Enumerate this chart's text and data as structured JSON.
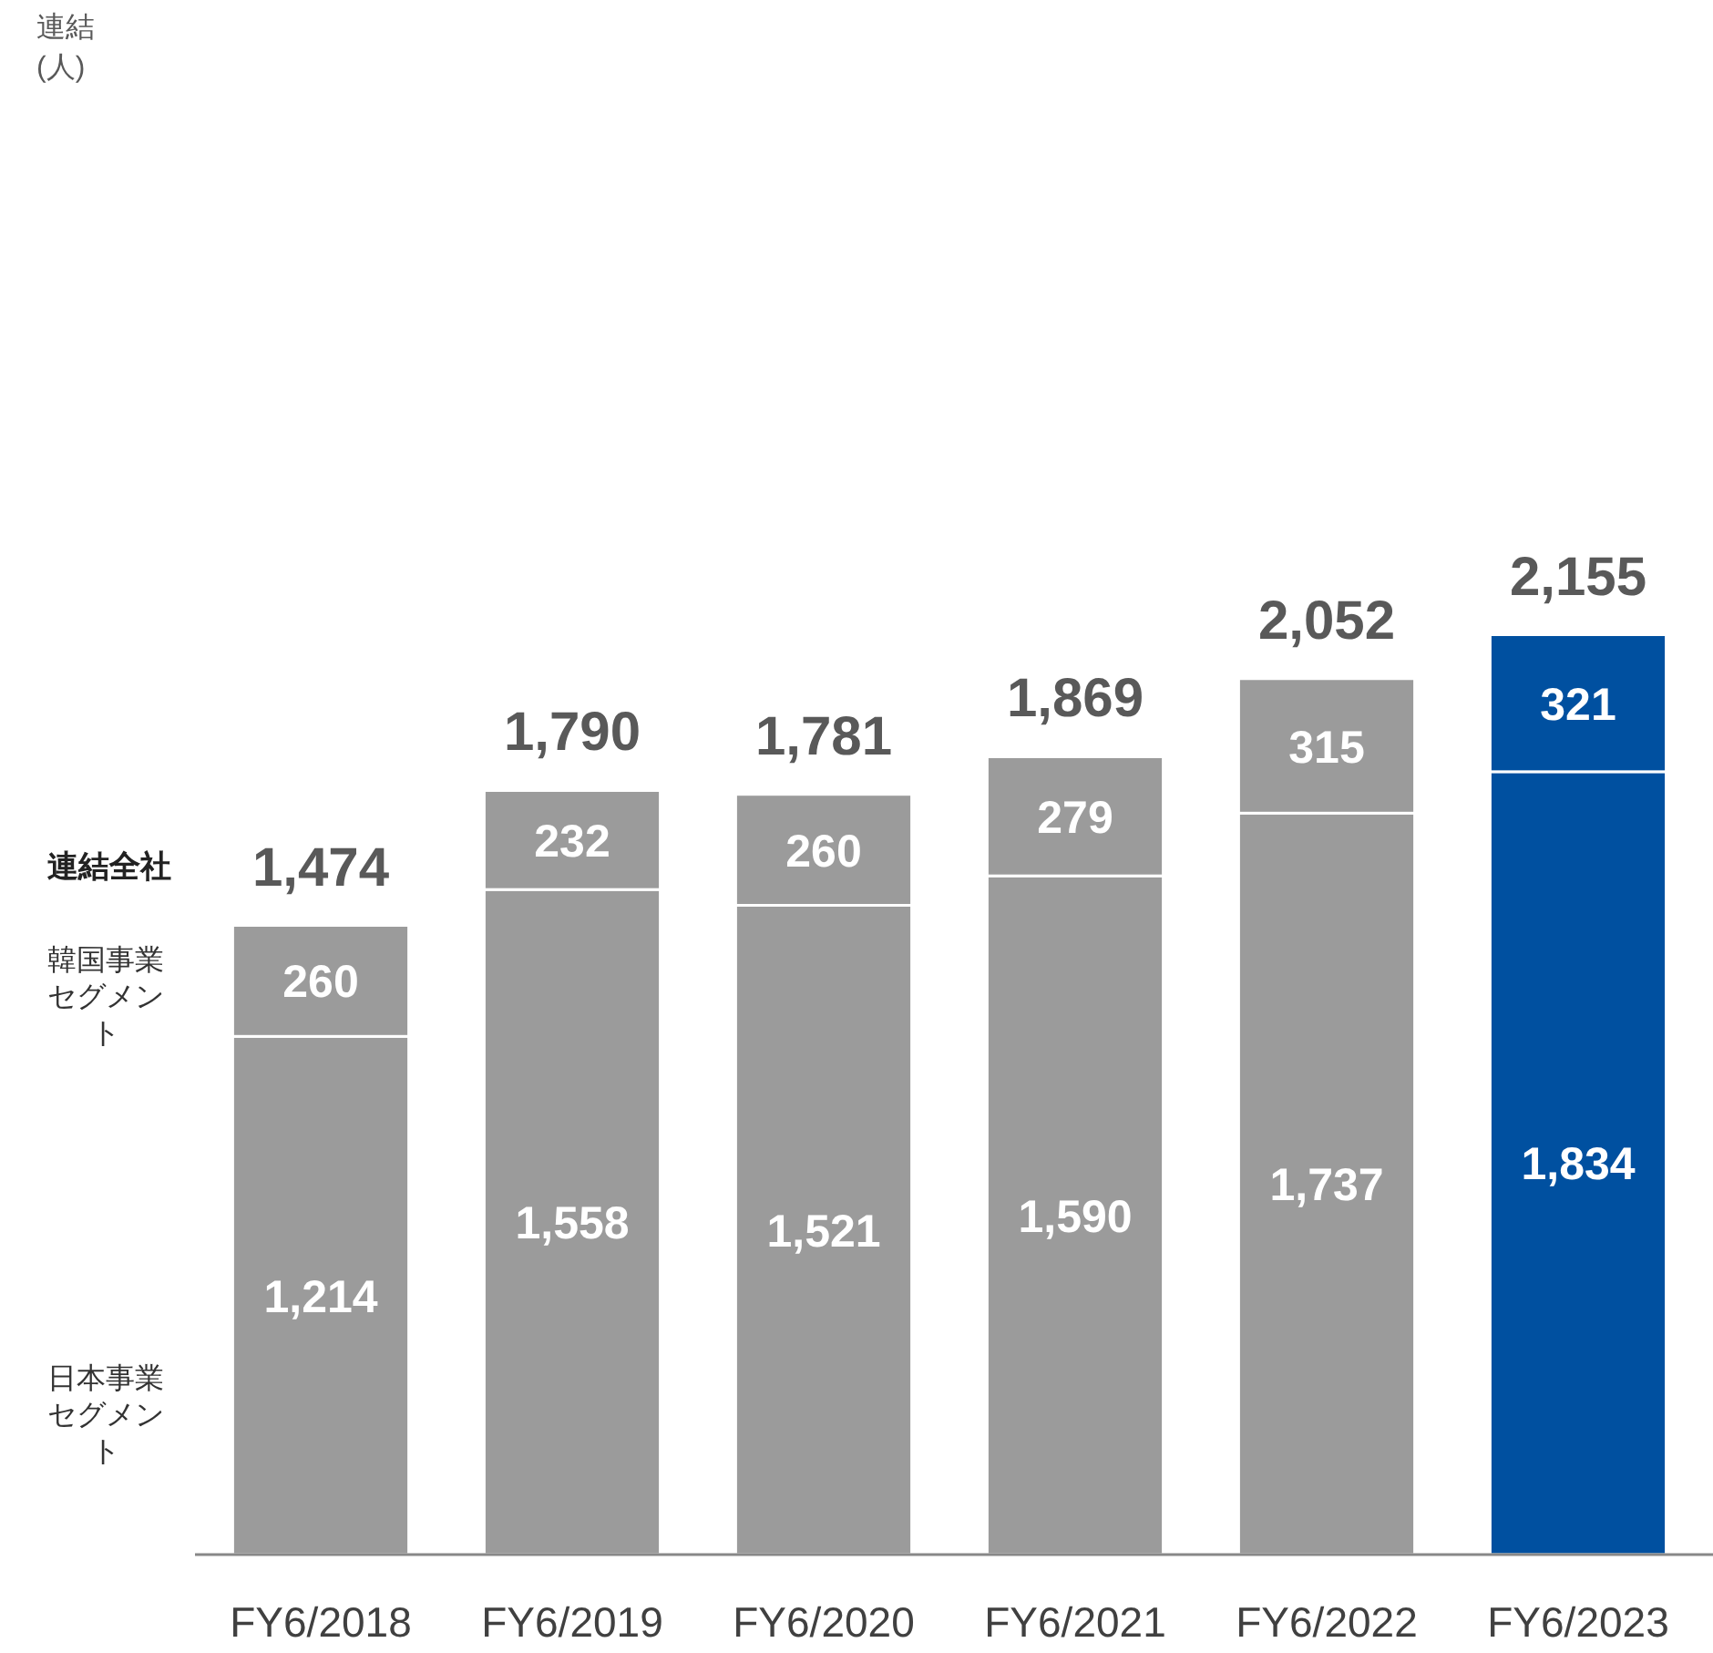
{
  "chart_data": {
    "type": "bar",
    "stacked": true,
    "categories": [
      "FY6/2018",
      "FY6/2019",
      "FY6/2020",
      "FY6/2021",
      "FY6/2022",
      "FY6/2023"
    ],
    "series": [
      {
        "name": "日本事業セグメント",
        "colors": [
          "#9b9b9b",
          "#9b9b9b",
          "#9b9b9b",
          "#9b9b9b",
          "#9b9b9b",
          "#0050a0"
        ],
        "values": [
          1214,
          1558,
          1521,
          1590,
          1737,
          1834
        ],
        "value_labels": [
          "1,214",
          "1,558",
          "1,521",
          "1,590",
          "1,737",
          "1,834"
        ]
      },
      {
        "name": "韓国事業セグメント",
        "colors": [
          "#9b9b9b",
          "#9b9b9b",
          "#9b9b9b",
          "#9b9b9b",
          "#9b9b9b",
          "#0050a0"
        ],
        "values": [
          260,
          232,
          260,
          279,
          315,
          321
        ],
        "value_labels": [
          "260",
          "232",
          "260",
          "279",
          "315",
          "321"
        ]
      }
    ],
    "totals": [
      "1,474",
      "1,790",
      "1,781",
      "1,869",
      "2,052",
      "2,155"
    ],
    "annotations": [
      "連結 (人)",
      "連結全社"
    ],
    "legend": false
  }
}
